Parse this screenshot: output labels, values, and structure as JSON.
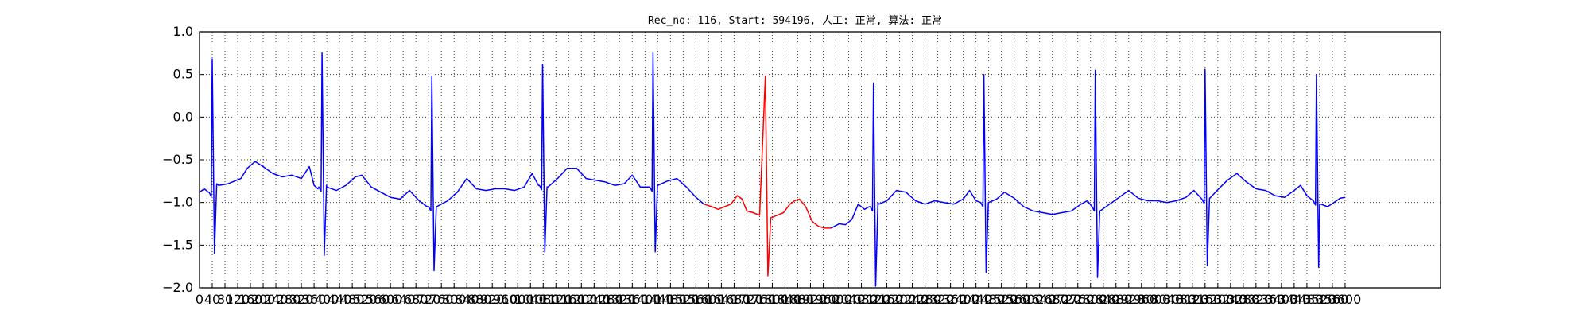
{
  "chart_data": {
    "type": "line",
    "title": "Rec_no: 116, Start: 594196, 人工: 正常, 算法: 正常",
    "xlabel": "",
    "ylabel": "",
    "xlim": [
      0,
      3900
    ],
    "ylim": [
      -2.0,
      1.0
    ],
    "grid": true,
    "xticks": [
      0,
      40,
      80,
      120,
      160,
      200,
      240,
      280,
      320,
      360,
      400,
      440,
      480,
      520,
      560,
      600,
      640,
      680,
      720,
      760,
      800,
      840,
      880,
      920,
      960,
      1000,
      1040,
      1080,
      1120,
      1160,
      1200,
      1240,
      1280,
      1320,
      1360,
      1400,
      1440,
      1480,
      1520,
      1560,
      1600,
      1640,
      1680,
      1720,
      1760,
      1800,
      1840,
      1880,
      1920,
      1960,
      2000,
      2040,
      2080,
      2120,
      2160,
      2200,
      2240,
      2280,
      2320,
      2360,
      2400,
      2440,
      2480,
      2520,
      2560,
      2600,
      2640,
      2680,
      2720,
      2760,
      2800,
      2840,
      2880,
      2920,
      2960,
      3000,
      3040,
      3080,
      3120,
      3160,
      3200,
      3240,
      3280,
      3320,
      3360,
      3400,
      3440,
      3480,
      3520,
      3560,
      3600
    ],
    "yticks": [
      1.0,
      0.5,
      0.0,
      -0.5,
      -1.0,
      -1.5,
      -2.0
    ],
    "ytick_labels": [
      "1.0",
      "0.5",
      "0.0",
      "−0.5",
      "−1.0",
      "−1.5",
      "−2.0"
    ],
    "beats": [
      {
        "t": 40,
        "qrs": [
          0.68,
          -1.6
        ],
        "pre": -0.88,
        "post": -0.78
      },
      {
        "t": 385,
        "qrs": [
          0.75,
          -1.62
        ],
        "pre": -0.82,
        "post": -0.8
      },
      {
        "t": 730,
        "qrs": [
          0.48,
          -1.8
        ],
        "pre": -1.05,
        "post": -1.05
      },
      {
        "t": 1078,
        "qrs": [
          0.62,
          -1.58
        ],
        "pre": -0.8,
        "post": -0.82
      },
      {
        "t": 1425,
        "qrs": [
          0.75,
          -1.58
        ],
        "pre": -0.82,
        "post": -0.8
      },
      {
        "t": 1775,
        "qrs": [
          0.48,
          -1.86
        ],
        "pre": -1.15,
        "post": -1.18
      },
      {
        "t": 2118,
        "qrs": [
          0.4,
          -1.98
        ],
        "pre": -1.05,
        "post": -1.0
      },
      {
        "t": 2465,
        "qrs": [
          0.5,
          -1.82
        ],
        "pre": -1.0,
        "post": -1.0
      },
      {
        "t": 2815,
        "qrs": [
          0.55,
          -1.88
        ],
        "pre": -1.05,
        "post": -1.1
      },
      {
        "t": 3160,
        "qrs": [
          0.56,
          -1.74
        ],
        "pre": -0.96,
        "post": -0.95
      },
      {
        "t": 3510,
        "qrs": [
          0.5,
          -1.76
        ],
        "pre": -0.98,
        "post": -1.02
      }
    ],
    "baseline_points": [
      [
        0,
        -0.88
      ],
      [
        15,
        -0.84
      ],
      [
        28,
        -0.88
      ],
      [
        60,
        -0.8
      ],
      [
        90,
        -0.78
      ],
      [
        130,
        -0.72
      ],
      [
        150,
        -0.6
      ],
      [
        175,
        -0.52
      ],
      [
        200,
        -0.58
      ],
      [
        230,
        -0.66
      ],
      [
        260,
        -0.7
      ],
      [
        290,
        -0.68
      ],
      [
        320,
        -0.72
      ],
      [
        345,
        -0.58
      ],
      [
        360,
        -0.8
      ],
      [
        372,
        -0.84
      ],
      [
        400,
        -0.82
      ],
      [
        430,
        -0.86
      ],
      [
        460,
        -0.8
      ],
      [
        490,
        -0.7
      ],
      [
        510,
        -0.68
      ],
      [
        540,
        -0.82
      ],
      [
        570,
        -0.88
      ],
      [
        600,
        -0.94
      ],
      [
        630,
        -0.96
      ],
      [
        660,
        -0.86
      ],
      [
        690,
        -0.98
      ],
      [
        715,
        -1.05
      ],
      [
        745,
        -1.05
      ],
      [
        780,
        -0.98
      ],
      [
        810,
        -0.88
      ],
      [
        840,
        -0.72
      ],
      [
        870,
        -0.84
      ],
      [
        900,
        -0.86
      ],
      [
        930,
        -0.84
      ],
      [
        960,
        -0.84
      ],
      [
        990,
        -0.86
      ],
      [
        1020,
        -0.82
      ],
      [
        1045,
        -0.66
      ],
      [
        1065,
        -0.8
      ],
      [
        1095,
        -0.82
      ],
      [
        1125,
        -0.72
      ],
      [
        1155,
        -0.6
      ],
      [
        1185,
        -0.6
      ],
      [
        1215,
        -0.72
      ],
      [
        1245,
        -0.74
      ],
      [
        1275,
        -0.76
      ],
      [
        1305,
        -0.8
      ],
      [
        1335,
        -0.78
      ],
      [
        1360,
        -0.68
      ],
      [
        1385,
        -0.82
      ],
      [
        1410,
        -0.82
      ],
      [
        1440,
        -0.8
      ],
      [
        1470,
        -0.75
      ],
      [
        1500,
        -0.72
      ],
      [
        1530,
        -0.82
      ],
      [
        1560,
        -0.94
      ],
      [
        1585,
        -1.02
      ]
    ],
    "highlight_points": [
      [
        1585,
        -1.02
      ],
      [
        1610,
        -1.05
      ],
      [
        1630,
        -1.08
      ],
      [
        1650,
        -1.05
      ],
      [
        1670,
        -1.02
      ],
      [
        1690,
        -0.92
      ],
      [
        1705,
        -0.96
      ],
      [
        1720,
        -1.1
      ],
      [
        1740,
        -1.12
      ],
      [
        1760,
        -1.15
      ],
      [
        1778,
        0.48
      ],
      [
        1786,
        -1.86
      ],
      [
        1795,
        -1.18
      ],
      [
        1815,
        -1.15
      ],
      [
        1835,
        -1.12
      ],
      [
        1855,
        -1.02
      ],
      [
        1870,
        -0.98
      ],
      [
        1885,
        -0.96
      ],
      [
        1905,
        -1.05
      ],
      [
        1925,
        -1.22
      ],
      [
        1945,
        -1.28
      ],
      [
        1965,
        -1.3
      ],
      [
        1985,
        -1.3
      ]
    ],
    "tail_points": [
      [
        1985,
        -1.3
      ],
      [
        2010,
        -1.25
      ],
      [
        2030,
        -1.26
      ],
      [
        2050,
        -1.2
      ],
      [
        2070,
        -1.02
      ],
      [
        2090,
        -1.08
      ],
      [
        2105,
        -1.05
      ],
      [
        2135,
        -1.02
      ],
      [
        2160,
        -0.98
      ],
      [
        2190,
        -0.86
      ],
      [
        2220,
        -0.88
      ],
      [
        2250,
        -0.98
      ],
      [
        2280,
        -1.02
      ],
      [
        2310,
        -0.98
      ],
      [
        2340,
        -1.0
      ],
      [
        2370,
        -1.02
      ],
      [
        2400,
        -0.96
      ],
      [
        2420,
        -0.86
      ],
      [
        2440,
        -0.98
      ],
      [
        2455,
        -1.0
      ],
      [
        2480,
        -1.0
      ],
      [
        2505,
        -0.96
      ],
      [
        2530,
        -0.88
      ],
      [
        2560,
        -0.95
      ],
      [
        2590,
        -1.05
      ],
      [
        2620,
        -1.1
      ],
      [
        2650,
        -1.12
      ],
      [
        2680,
        -1.14
      ],
      [
        2710,
        -1.12
      ],
      [
        2740,
        -1.1
      ],
      [
        2770,
        -1.02
      ],
      [
        2790,
        -0.98
      ],
      [
        2805,
        -1.05
      ],
      [
        2830,
        -1.1
      ],
      [
        2860,
        -1.02
      ],
      [
        2890,
        -0.94
      ],
      [
        2920,
        -0.86
      ],
      [
        2950,
        -0.95
      ],
      [
        2980,
        -0.98
      ],
      [
        3010,
        -0.98
      ],
      [
        3040,
        -1.0
      ],
      [
        3070,
        -0.98
      ],
      [
        3100,
        -0.94
      ],
      [
        3125,
        -0.86
      ],
      [
        3150,
        -0.96
      ],
      [
        3175,
        -0.95
      ],
      [
        3200,
        -0.85
      ],
      [
        3230,
        -0.74
      ],
      [
        3260,
        -0.66
      ],
      [
        3290,
        -0.76
      ],
      [
        3320,
        -0.84
      ],
      [
        3350,
        -0.86
      ],
      [
        3380,
        -0.92
      ],
      [
        3410,
        -0.94
      ],
      [
        3440,
        -0.86
      ],
      [
        3460,
        -0.8
      ],
      [
        3480,
        -0.92
      ],
      [
        3500,
        -0.98
      ],
      [
        3520,
        -1.02
      ],
      [
        3545,
        -1.05
      ],
      [
        3565,
        -1.0
      ],
      [
        3585,
        -0.95
      ],
      [
        3600,
        -0.94
      ]
    ],
    "colors": {
      "normal": "#0000ff",
      "highlight": "#ff0000",
      "axes": "#000000",
      "grid": "#000000"
    }
  }
}
